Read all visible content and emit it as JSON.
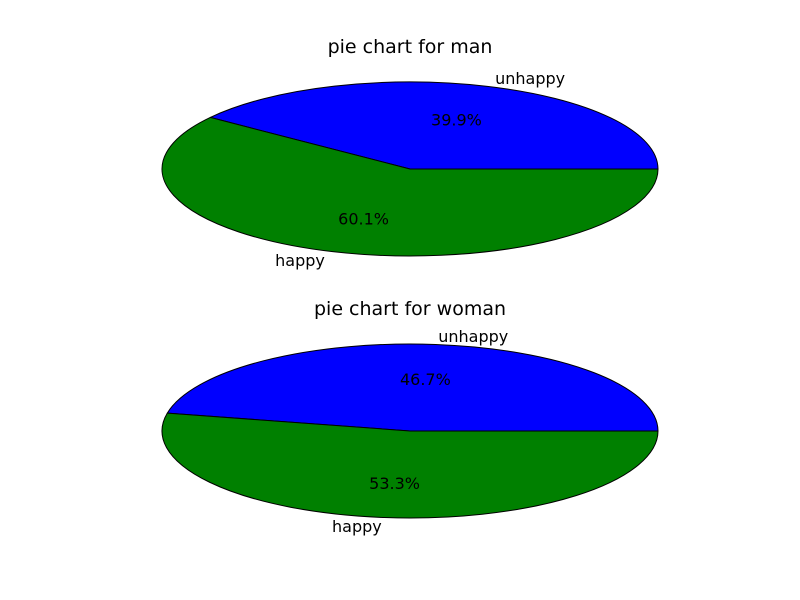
{
  "chart_data": [
    {
      "type": "pie",
      "title": "pie chart for man",
      "categories": [
        "unhappy",
        "happy"
      ],
      "values": [
        39.9,
        60.1
      ],
      "percent_labels": [
        "39.9%",
        "60.1%"
      ],
      "colors": [
        "#0000ff",
        "#008000"
      ]
    },
    {
      "type": "pie",
      "title": "pie chart for woman",
      "categories": [
        "unhappy",
        "happy"
      ],
      "values": [
        46.7,
        53.3
      ],
      "percent_labels": [
        "46.7%",
        "53.3%"
      ],
      "colors": [
        "#0000ff",
        "#008000"
      ]
    }
  ]
}
